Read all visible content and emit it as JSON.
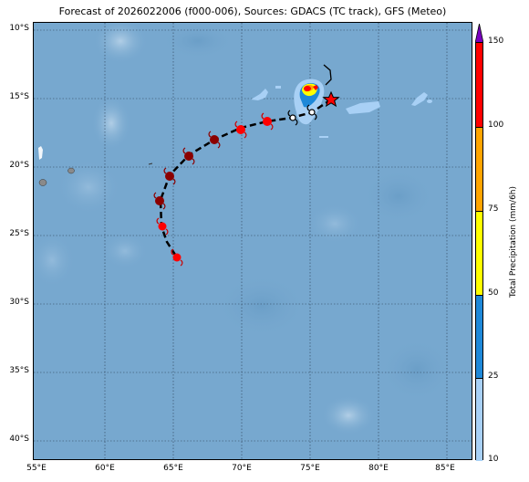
{
  "title": "Forecast of 2026022006 (f000-006), Sources: GDACS (TC track), GFS (Meteo)",
  "map": {
    "lat_labels": [
      "10°S",
      "15°S",
      "20°S",
      "25°S",
      "30°S",
      "35°S",
      "40°S"
    ],
    "lon_labels": [
      "55°E",
      "60°E",
      "65°E",
      "70°E",
      "75°E",
      "80°E",
      "85°E"
    ],
    "ocean_color": "#77a8cf",
    "track_color": "#000000",
    "current_position_marker": "red-star-icon",
    "storm_symbol": "tropical-cyclone-icon"
  },
  "colorbar": {
    "label": "Total Precipitation (mm/6h)",
    "ticks": [
      "10",
      "25",
      "50",
      "75",
      "100",
      "150"
    ],
    "colors": [
      "#a8d0f5",
      "#1e88d8",
      "#ffff00",
      "#ffa500",
      "#ff0000"
    ],
    "extend_color": "#7a00c0"
  }
}
